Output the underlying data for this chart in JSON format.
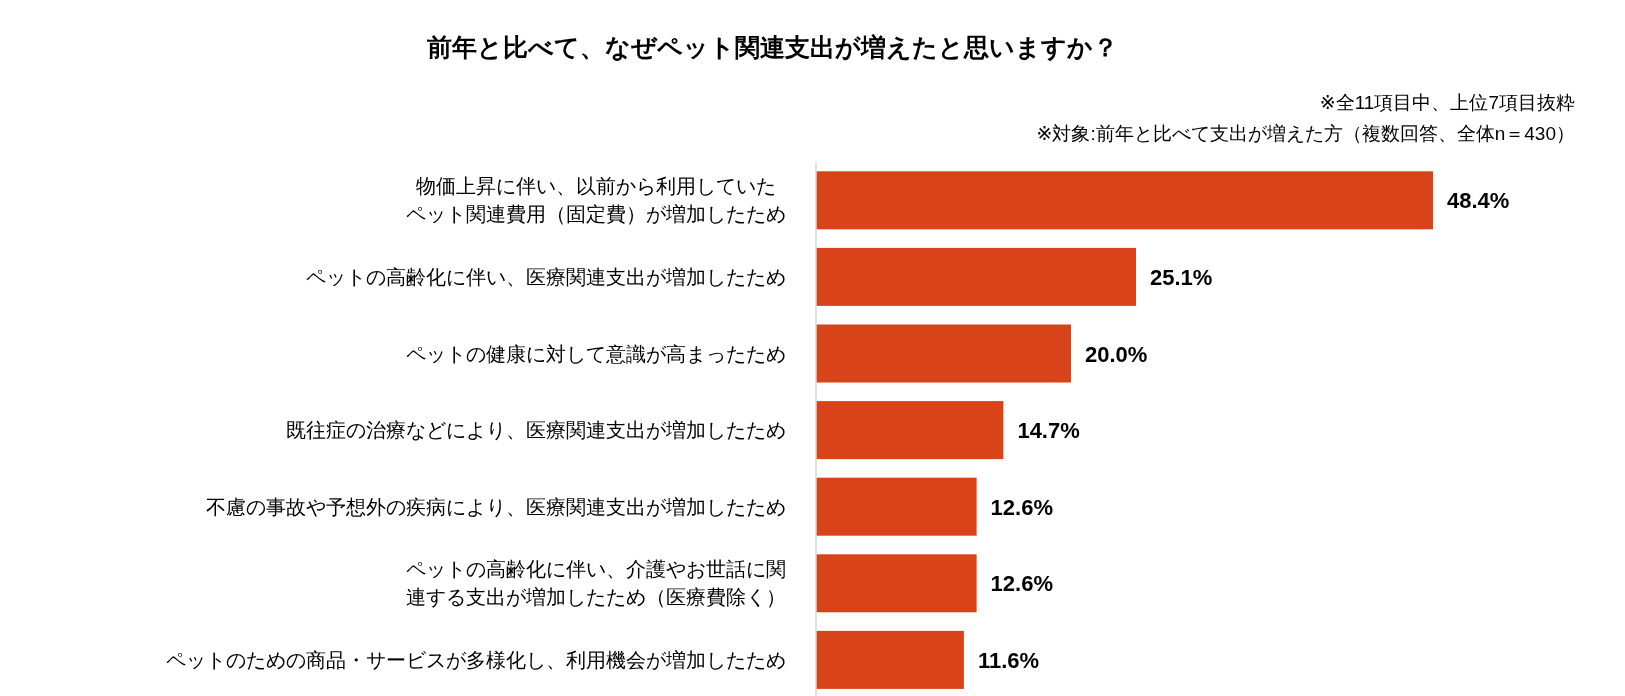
{
  "chart_data": {
    "type": "bar",
    "orientation": "horizontal",
    "title": "前年と比べて、なぜペット関連支出が増えたと思いますか？",
    "categories": [
      "物価上昇に伴い、以前から利用していたペット関連費用（固定費）が増加したため",
      "ペットの高齢化に伴い、医療関連支出が増加したため",
      "ペットの健康に対して意識が高まったため",
      "既往症の治療などにより、医療関連支出が増加したため",
      "不慮の事故や予想外の疾病により、医療関連支出が増加したため",
      "ペットの高齢化に伴い、介護やお世話に関連する支出が増加したため（医療費除く）",
      "ペットのための商品・サービスが多様化し、利用機会が増加したため"
    ],
    "values": [
      48.4,
      25.1,
      20.0,
      14.7,
      12.6,
      12.6,
      11.6
    ],
    "value_labels": [
      "48.4%",
      "25.1%",
      "20.0%",
      "14.7%",
      "12.6%",
      "12.6%",
      "11.6%"
    ],
    "color": "#d9431a",
    "annotations": [
      "※全11項目中、上位7項目抜粋",
      "※対象:前年と比べて支出が増えた方（複数回答、全体n＝430）"
    ]
  }
}
